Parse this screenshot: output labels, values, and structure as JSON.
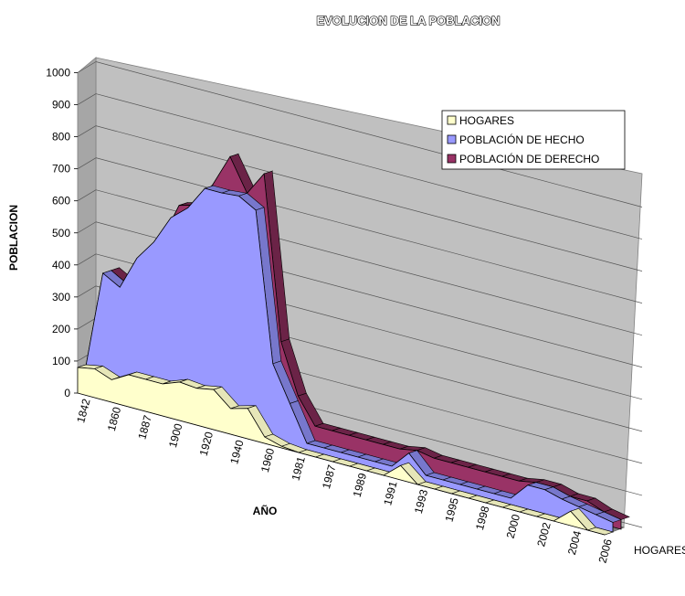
{
  "chart_data": {
    "type": "area",
    "title": "EVOLUCION DE LA POBLACION",
    "ylabel": "POBLACION",
    "xlabel": "AÑO",
    "depth_axis_label": "HOGARES",
    "ylim": [
      0,
      1000
    ],
    "y_ticks": [
      "0",
      "100",
      "200",
      "300",
      "400",
      "500",
      "600",
      "700",
      "800",
      "900",
      "1000"
    ],
    "x_tick_labels": [
      "1842",
      "1860",
      "1887",
      "1900",
      "1920",
      "1940",
      "1960",
      "1981",
      "1987",
      "1989",
      "1991",
      "1993",
      "1995",
      "1998",
      "2000",
      "2002",
      "2004",
      "2006"
    ],
    "categories": [
      "c01",
      "c02",
      "c03",
      "c04",
      "c05",
      "c06",
      "c07",
      "c08",
      "c09",
      "c10",
      "c11",
      "c12",
      "c13",
      "c14",
      "c15",
      "c16",
      "c17",
      "c18",
      "c19",
      "c20",
      "c21",
      "c22",
      "c23",
      "c24",
      "c25",
      "c26",
      "c27",
      "c28",
      "c29",
      "c30",
      "c31",
      "c32"
    ],
    "series": [
      {
        "name": "HOGARES",
        "color": "#ffffcc",
        "values": [
          80,
          90,
          70,
          100,
          100,
          100,
          120,
          115,
          125,
          80,
          95,
          20,
          5,
          0,
          0,
          0,
          0,
          0,
          0,
          45,
          0,
          0,
          0,
          0,
          0,
          0,
          0,
          0,
          0,
          45,
          0,
          0
        ]
      },
      {
        "name": "POBLACIÓN DE HECHO",
        "color": "#9999ff",
        "values": [
          75,
          380,
          350,
          455,
          520,
          610,
          655,
          730,
          730,
          735,
          705,
          240,
          130,
          20,
          20,
          20,
          20,
          20,
          20,
          75,
          20,
          20,
          20,
          20,
          20,
          20,
          75,
          75,
          60,
          50,
          40,
          30
        ]
      },
      {
        "name": "POBLACIÓN DE DERECHO",
        "color": "#993366",
        "values": [
          75,
          380,
          350,
          455,
          520,
          640,
          655,
          735,
          835,
          735,
          810,
          300,
          145,
          65,
          65,
          65,
          65,
          65,
          65,
          75,
          65,
          65,
          65,
          65,
          65,
          65,
          75,
          75,
          60,
          60,
          40,
          30
        ]
      }
    ],
    "legend_position": "top-right",
    "grid": true
  }
}
